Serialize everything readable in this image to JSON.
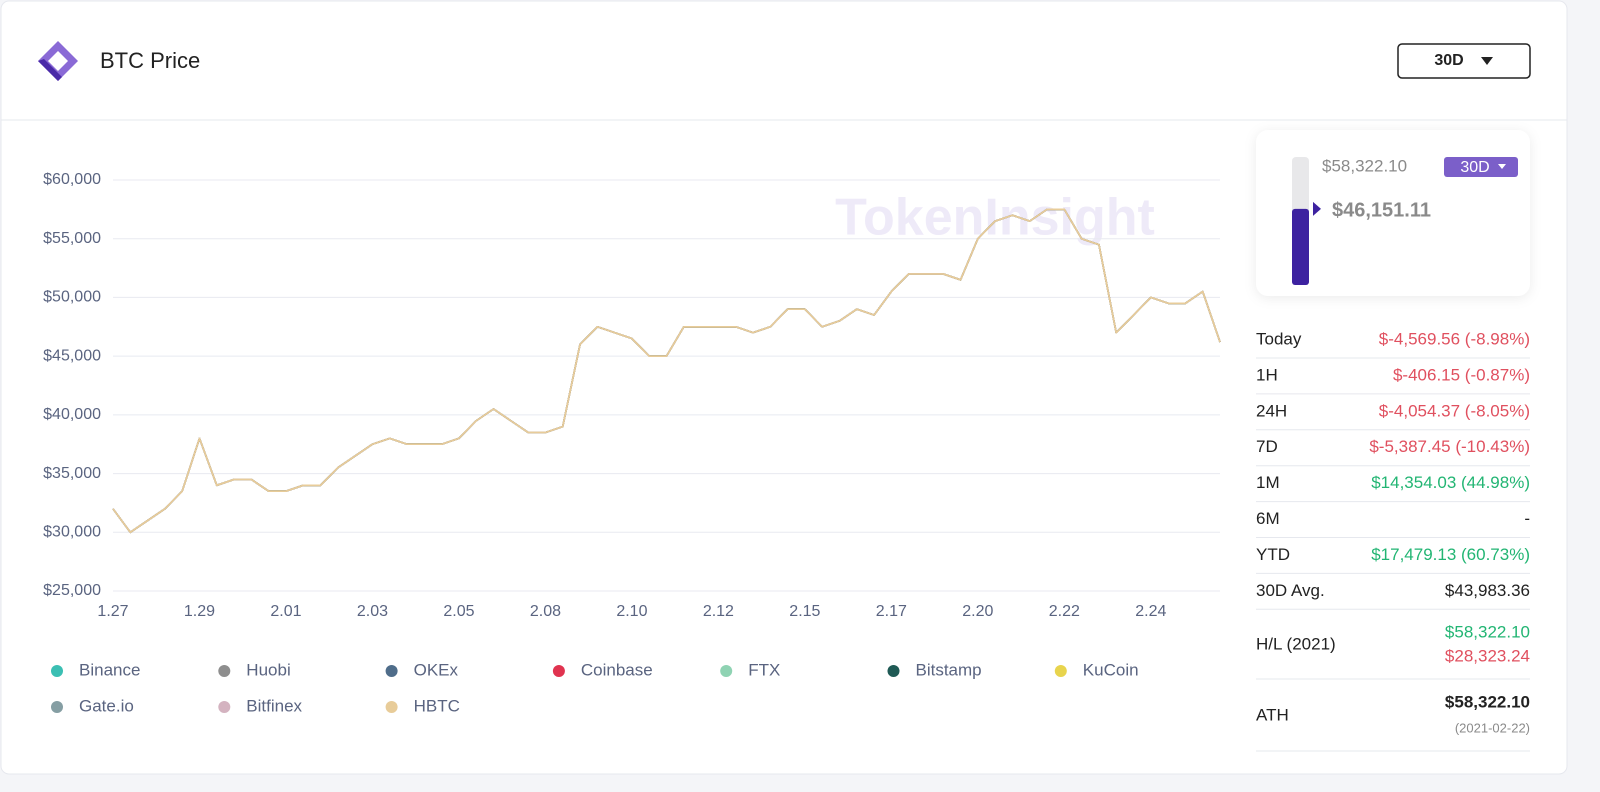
{
  "header": {
    "title": "BTC Price",
    "range_button": "30D"
  },
  "watermark": "TokenInsight",
  "chart_data": {
    "type": "line",
    "categories": [
      "1.27",
      null,
      null,
      null,
      null,
      "1.29",
      null,
      null,
      null,
      null,
      "2.01",
      null,
      null,
      null,
      null,
      "2.03",
      null,
      null,
      null,
      null,
      "2.05",
      null,
      null,
      null,
      null,
      "2.08",
      null,
      null,
      null,
      null,
      "2.10",
      null,
      null,
      null,
      null,
      "2.12",
      null,
      null,
      null,
      null,
      "2.15",
      null,
      null,
      null,
      null,
      "2.17",
      null,
      null,
      null,
      null,
      "2.20",
      null,
      null,
      null,
      null,
      "2.22",
      null,
      null,
      null,
      null,
      "2.24",
      null,
      null,
      null,
      null
    ],
    "ylim": [
      25000,
      60000
    ],
    "yticks": [
      {
        "value": 25000,
        "label": "$25,000"
      },
      {
        "value": 30000,
        "label": "$30,000"
      },
      {
        "value": 35000,
        "label": "$35,000"
      },
      {
        "value": 40000,
        "label": "$40,000"
      },
      {
        "value": 45000,
        "label": "$45,000"
      },
      {
        "value": 50000,
        "label": "$50,000"
      },
      {
        "value": 55000,
        "label": "$55,000"
      },
      {
        "value": 60000,
        "label": "$60,000"
      }
    ],
    "grid": true,
    "series": [
      {
        "name": "Binance",
        "color": "#3bbfb3",
        "values": [
          32000,
          30000,
          31000,
          32000,
          33500,
          38000,
          34000,
          34500,
          34500,
          33500,
          33500,
          34000,
          34000,
          35500,
          36500,
          37500,
          38000,
          37500,
          37500,
          37500,
          38000,
          39500,
          40500,
          39500,
          38500,
          38500,
          39000,
          46000,
          47500,
          47000,
          46500,
          45000,
          45000,
          47500,
          47500,
          47500,
          47500,
          47000,
          47500,
          49000,
          49000,
          47500,
          48000,
          49000,
          48500,
          50500,
          52000,
          52000,
          52000,
          51500,
          55000,
          56500,
          57000,
          56500,
          57500,
          57500,
          55000,
          54500,
          47000,
          48500,
          50000,
          49500,
          49500,
          50500,
          46200
        ]
      },
      {
        "name": "Huobi",
        "color": "#8e8e8e",
        "values": [
          32000,
          30000,
          31000,
          32000,
          33500,
          38000,
          34000,
          34500,
          34500,
          33500,
          33500,
          34000,
          34000,
          35500,
          36500,
          37500,
          38000,
          37500,
          37500,
          37500,
          38000,
          39500,
          40500,
          39500,
          38500,
          38500,
          39000,
          46000,
          47500,
          47000,
          46500,
          45000,
          45000,
          47500,
          47500,
          47500,
          47500,
          47000,
          47500,
          49000,
          49000,
          47500,
          48000,
          49000,
          48500,
          50500,
          52000,
          52000,
          52000,
          51500,
          55000,
          56500,
          57000,
          56500,
          57500,
          57500,
          55000,
          54500,
          47000,
          48500,
          50000,
          49500,
          49500,
          50500,
          46200
        ]
      },
      {
        "name": "OKEx",
        "color": "#4f6d8a",
        "values": [
          32000,
          30000,
          31000,
          32000,
          33500,
          38000,
          34000,
          34500,
          34500,
          33500,
          33500,
          34000,
          34000,
          35500,
          36500,
          37500,
          38000,
          37500,
          37500,
          37500,
          38000,
          39500,
          40500,
          39500,
          38500,
          38500,
          39000,
          46000,
          47500,
          47000,
          46500,
          45000,
          45000,
          47500,
          47500,
          47500,
          47500,
          47000,
          47500,
          49000,
          49000,
          47500,
          48000,
          49000,
          48500,
          50500,
          52000,
          52000,
          52000,
          51500,
          55000,
          56500,
          57000,
          56500,
          57500,
          57500,
          55000,
          54500,
          47000,
          48500,
          50000,
          49500,
          49500,
          50500,
          46200
        ]
      },
      {
        "name": "Coinbase",
        "color": "#e0334f",
        "values": [
          32000,
          30000,
          31000,
          32000,
          33500,
          38000,
          34000,
          34500,
          34500,
          33500,
          33500,
          34000,
          34000,
          35500,
          36500,
          37500,
          38000,
          37500,
          37500,
          37500,
          38000,
          39500,
          40500,
          39500,
          38500,
          38500,
          39000,
          46000,
          47500,
          47000,
          46500,
          45000,
          45000,
          47500,
          47500,
          47500,
          47500,
          47000,
          47500,
          49000,
          49000,
          47500,
          48000,
          49000,
          48500,
          50500,
          52000,
          52000,
          52000,
          51500,
          55000,
          56500,
          57000,
          56500,
          57500,
          57500,
          55000,
          54500,
          47000,
          48500,
          50000,
          49500,
          49500,
          50500,
          46200
        ]
      },
      {
        "name": "FTX",
        "color": "#8fd3b3",
        "values": [
          32000,
          30000,
          31000,
          32000,
          33500,
          38000,
          34000,
          34500,
          34500,
          33500,
          33500,
          34000,
          34000,
          35500,
          36500,
          37500,
          38000,
          37500,
          37500,
          37500,
          38000,
          39500,
          40500,
          39500,
          38500,
          38500,
          39000,
          46000,
          47500,
          47000,
          46500,
          45000,
          45000,
          47500,
          47500,
          47500,
          47500,
          47000,
          47500,
          49000,
          49000,
          47500,
          48000,
          49000,
          48500,
          50500,
          52000,
          52000,
          52000,
          51500,
          55000,
          56500,
          57000,
          56500,
          57500,
          57500,
          55000,
          54500,
          47000,
          48500,
          50000,
          49500,
          49500,
          50500,
          46200
        ]
      },
      {
        "name": "Bitstamp",
        "color": "#1f5a55",
        "values": [
          32000,
          30000,
          31000,
          32000,
          33500,
          38000,
          34000,
          34500,
          34500,
          33500,
          33500,
          34000,
          34000,
          35500,
          36500,
          37500,
          38000,
          37500,
          37500,
          37500,
          38000,
          39500,
          40500,
          39500,
          38500,
          38500,
          39000,
          46000,
          47500,
          47000,
          46500,
          45000,
          45000,
          47500,
          47500,
          47500,
          47500,
          47000,
          47500,
          49000,
          49000,
          47500,
          48000,
          49000,
          48500,
          50500,
          52000,
          52000,
          52000,
          51500,
          55000,
          56500,
          57000,
          56500,
          57500,
          57500,
          55000,
          54500,
          47000,
          48500,
          50000,
          49500,
          49500,
          50500,
          46200
        ]
      },
      {
        "name": "KuCoin",
        "color": "#e8d44d",
        "values": [
          32000,
          30000,
          31000,
          32000,
          33500,
          38000,
          34000,
          34500,
          34500,
          33500,
          33500,
          34000,
          34000,
          35500,
          36500,
          37500,
          38000,
          37500,
          37500,
          37500,
          38000,
          39500,
          40500,
          39500,
          38500,
          38500,
          39000,
          46000,
          47500,
          47000,
          46500,
          45000,
          45000,
          47500,
          47500,
          47500,
          47500,
          47000,
          47500,
          49000,
          49000,
          47500,
          48000,
          49000,
          48500,
          50500,
          52000,
          52000,
          52000,
          51500,
          55000,
          56500,
          57000,
          56500,
          57500,
          57500,
          55000,
          54500,
          47000,
          48500,
          50000,
          49500,
          49500,
          50500,
          46200
        ]
      },
      {
        "name": "Gate.io",
        "color": "#859ea3",
        "values": [
          32000,
          30000,
          31000,
          32000,
          33500,
          38000,
          34000,
          34500,
          34500,
          33500,
          33500,
          34000,
          34000,
          35500,
          36500,
          37500,
          38000,
          37500,
          37500,
          37500,
          38000,
          39500,
          40500,
          39500,
          38500,
          38500,
          39000,
          46000,
          47500,
          47000,
          46500,
          45000,
          45000,
          47500,
          47500,
          47500,
          47500,
          47000,
          47500,
          49000,
          49000,
          47500,
          48000,
          49000,
          48500,
          50500,
          52000,
          52000,
          52000,
          51500,
          55000,
          56500,
          57000,
          56500,
          57500,
          57500,
          55000,
          54500,
          47000,
          48500,
          50000,
          49500,
          49500,
          50500,
          46200
        ]
      },
      {
        "name": "Bitfinex",
        "color": "#d4b3c0",
        "values": [
          32000,
          30000,
          31000,
          32000,
          33500,
          38000,
          34000,
          34500,
          34500,
          33500,
          33500,
          34000,
          34000,
          35500,
          36500,
          37500,
          38000,
          37500,
          37500,
          37500,
          38000,
          39500,
          40500,
          39500,
          38500,
          38500,
          39000,
          46000,
          47500,
          47000,
          46500,
          45000,
          45000,
          47500,
          47500,
          47500,
          47500,
          47000,
          47500,
          49000,
          49000,
          47500,
          48000,
          49000,
          48500,
          50500,
          52000,
          52000,
          52000,
          51500,
          55000,
          56500,
          57000,
          56500,
          57500,
          57500,
          55000,
          54500,
          47000,
          48500,
          50000,
          49500,
          49500,
          50500,
          46200
        ]
      },
      {
        "name": "HBTC",
        "color": "#e8cc99",
        "values": [
          32000,
          30000,
          31000,
          32000,
          33500,
          38000,
          34000,
          34500,
          34500,
          33500,
          33500,
          34000,
          34000,
          35500,
          36500,
          37500,
          38000,
          37500,
          37500,
          37500,
          38000,
          39500,
          40500,
          39500,
          38500,
          38500,
          39000,
          46000,
          47500,
          47000,
          46500,
          45000,
          45000,
          47500,
          47500,
          47500,
          47500,
          47000,
          47500,
          49000,
          49000,
          47500,
          48000,
          49000,
          48500,
          50500,
          52000,
          52000,
          52000,
          51500,
          55000,
          56500,
          57000,
          56500,
          57500,
          57500,
          55000,
          54500,
          47000,
          48500,
          50000,
          49500,
          49500,
          50500,
          46200
        ]
      }
    ]
  },
  "gauge": {
    "high": "$58,322.10",
    "current": "$46,151.11",
    "badge": "30D",
    "high_value": 58322.1,
    "low_value": 28323.24,
    "current_value": 46151.11
  },
  "stats": [
    {
      "label": "Today",
      "value": "$-4,569.56 (-8.98%)",
      "color": "#e0505f"
    },
    {
      "label": "1H",
      "value": "$-406.15 (-0.87%)",
      "color": "#e0505f"
    },
    {
      "label": "24H",
      "value": "$-4,054.37 (-8.05%)",
      "color": "#e0505f"
    },
    {
      "label": "7D",
      "value": "$-5,387.45 (-10.43%)",
      "color": "#e0505f"
    },
    {
      "label": "1M",
      "value": "$14,354.03 (44.98%)",
      "color": "#22b573"
    },
    {
      "label": "6M",
      "value": "-",
      "color": "#222222"
    },
    {
      "label": "YTD",
      "value": "$17,479.13 (60.73%)",
      "color": "#22b573"
    },
    {
      "label": "30D Avg.",
      "value": "$43,983.36",
      "color": "#222222"
    }
  ],
  "high_low": {
    "label": "H/L (2021)",
    "high": "$58,322.10",
    "low": "$28,323.24"
  },
  "ath": {
    "label": "ATH",
    "value": "$58,322.10",
    "date": "(2021-02-22)"
  }
}
